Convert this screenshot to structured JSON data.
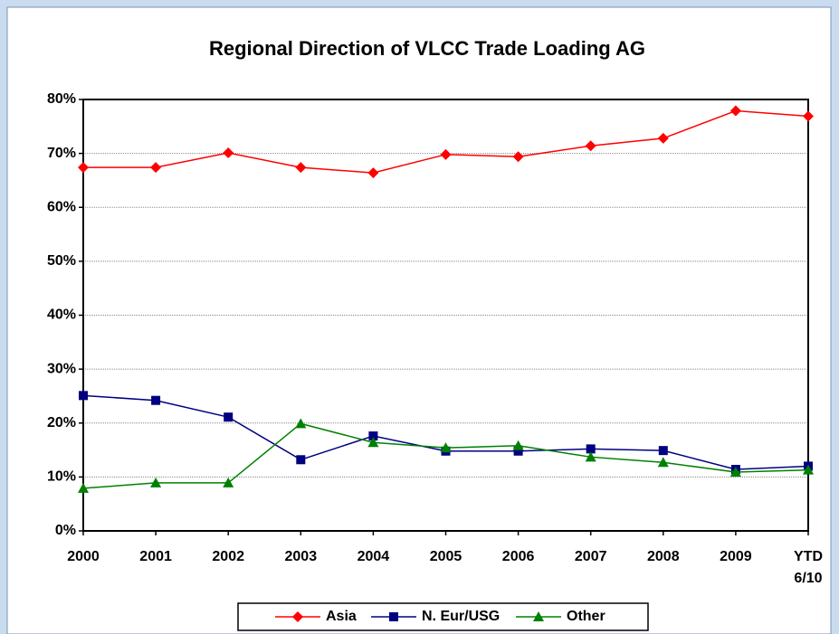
{
  "chart_data": {
    "type": "line",
    "title": "Regional Direction of VLCC Trade Loading AG",
    "categories": [
      "2000",
      "2001",
      "2002",
      "2003",
      "2004",
      "2005",
      "2006",
      "2007",
      "2008",
      "2009",
      "YTD\n6/10"
    ],
    "series": [
      {
        "name": "Asia",
        "color": "#ff0000",
        "marker": "diamond",
        "values": [
          67.4,
          67.4,
          70.1,
          67.4,
          66.4,
          69.8,
          69.4,
          71.4,
          72.8,
          77.9,
          76.9
        ]
      },
      {
        "name": "N. Eur/USG",
        "color": "#000080",
        "marker": "square",
        "values": [
          25.1,
          24.2,
          21.1,
          13.2,
          17.6,
          14.8,
          14.8,
          15.2,
          14.9,
          11.4,
          12.0
        ]
      },
      {
        "name": "Other",
        "color": "#008000",
        "marker": "triangle",
        "values": [
          7.9,
          8.9,
          8.9,
          19.9,
          16.4,
          15.4,
          15.8,
          13.7,
          12.7,
          10.9,
          11.3
        ]
      }
    ],
    "ylim": [
      0,
      80
    ],
    "yticks": [
      {
        "value": 0,
        "label": "0%"
      },
      {
        "value": 10,
        "label": "10%"
      },
      {
        "value": 20,
        "label": "20%"
      },
      {
        "value": 30,
        "label": "30%"
      },
      {
        "value": 40,
        "label": "40%"
      },
      {
        "value": 50,
        "label": "50%"
      },
      {
        "value": 60,
        "label": "60%"
      },
      {
        "value": 70,
        "label": "70%"
      },
      {
        "value": 80,
        "label": "80%"
      }
    ],
    "grid": true,
    "legend": "bottom"
  }
}
